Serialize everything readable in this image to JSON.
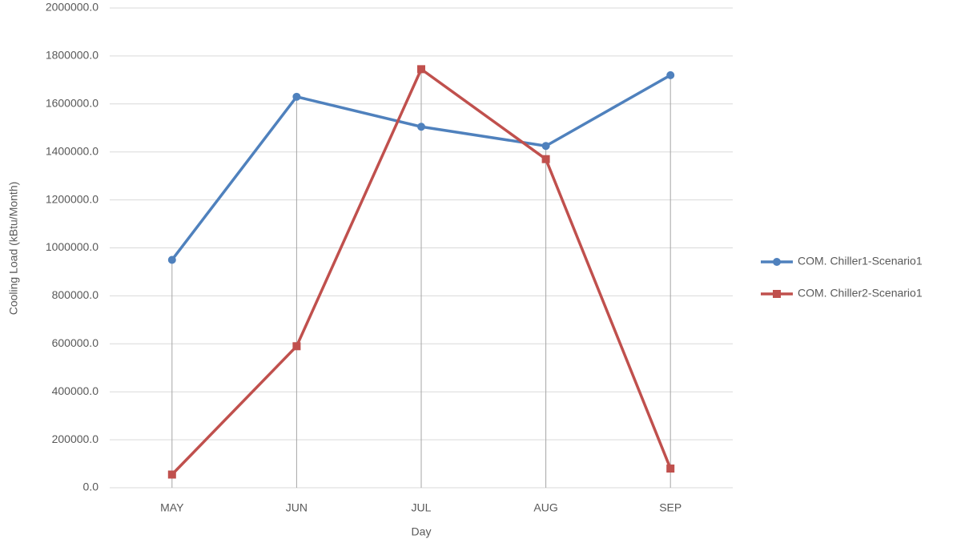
{
  "chart_data": {
    "type": "line",
    "y_label": "Cooling Load (kBtu/Month)",
    "x_label": "Day",
    "categories": [
      "MAY",
      "JUN",
      "JUL",
      "AUG",
      "SEP"
    ],
    "series": [
      {
        "name": "COM. Chiller1-Scenario1",
        "color": "#4f81bd",
        "marker": "circle",
        "values": [
          950000,
          1630000,
          1505000,
          1425000,
          1720000
        ]
      },
      {
        "name": "COM. Chiller2-Scenario1",
        "color": "#c0504d",
        "marker": "square",
        "values": [
          55000,
          590000,
          1745000,
          1370000,
          80000
        ]
      }
    ],
    "ylim": [
      0,
      2000000
    ],
    "yticks": [
      {
        "value": 0,
        "label": "0.0"
      },
      {
        "value": 200000,
        "label": "200000.0"
      },
      {
        "value": 400000,
        "label": "400000.0"
      },
      {
        "value": 600000,
        "label": "600000.0"
      },
      {
        "value": 800000,
        "label": "800000.0"
      },
      {
        "value": 1000000,
        "label": "1000000.0"
      },
      {
        "value": 1200000,
        "label": "1200000.0"
      },
      {
        "value": 1400000,
        "label": "1400000.0"
      },
      {
        "value": 1600000,
        "label": "1600000.0"
      },
      {
        "value": 1800000,
        "label": "1800000.0"
      },
      {
        "value": 2000000,
        "label": "2000000.0"
      }
    ],
    "grid": true,
    "drop_lines": true,
    "legend": "right"
  }
}
